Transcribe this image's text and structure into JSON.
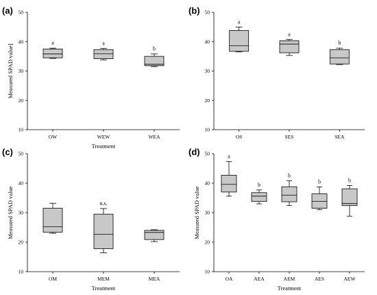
{
  "chart_data": [
    {
      "type": "box",
      "panel_label": "(a)",
      "xlabel": "Treatment",
      "ylabel": "Measured SPAD value]",
      "ylim": [
        10,
        50
      ],
      "yticks": [
        10,
        20,
        30,
        40,
        50
      ],
      "categories": [
        "OW",
        "WEW",
        "WEA"
      ],
      "boxes": [
        {
          "whisker_low": 34.3,
          "q1": 34.5,
          "median": 35.8,
          "q3": 37.5,
          "whisker_high": 37.8
        },
        {
          "whisker_low": 33.8,
          "q1": 34.2,
          "median": 35.9,
          "q3": 37.3,
          "whisker_high": 37.7
        },
        {
          "whisker_low": 31.5,
          "q1": 31.8,
          "median": 32.3,
          "q3": 35.0,
          "whisker_high": 35.8
        }
      ],
      "annotations": [
        "a",
        "a",
        "b"
      ]
    },
    {
      "type": "box",
      "panel_label": "(b)",
      "xlabel": "",
      "ylabel": "",
      "ylim": [
        10,
        50
      ],
      "yticks": [
        10,
        20,
        30,
        40,
        50
      ],
      "categories": [
        "OS",
        "SES",
        "SEA"
      ],
      "boxes": [
        {
          "whisker_low": 36.5,
          "q1": 36.7,
          "median": 38.6,
          "q3": 43.8,
          "whisker_high": 45.0
        },
        {
          "whisker_low": 35.3,
          "q1": 36.2,
          "median": 39.2,
          "q3": 40.3,
          "whisker_high": 40.8
        },
        {
          "whisker_low": 32.2,
          "q1": 32.4,
          "median": 34.5,
          "q3": 37.3,
          "whisker_high": 37.8
        }
      ],
      "annotations": [
        "a",
        "a",
        "b"
      ]
    },
    {
      "type": "box",
      "panel_label": "(c)",
      "xlabel": "Treatment",
      "ylabel": "Measured SPAD value",
      "ylim": [
        10,
        50
      ],
      "yticks": [
        10,
        20,
        30,
        40,
        50
      ],
      "categories": [
        "OM",
        "MEM",
        "MEA"
      ],
      "boxes": [
        {
          "whisker_low": 23.0,
          "q1": 23.4,
          "median": 25.2,
          "q3": 31.5,
          "whisker_high": 33.2
        },
        {
          "whisker_low": 16.4,
          "q1": 17.8,
          "median": 22.7,
          "q3": 29.5,
          "whisker_high": 31.4
        },
        {
          "whisker_low": 20.2,
          "q1": 20.9,
          "median": 23.3,
          "q3": 24.0,
          "whisker_high": 24.2
        }
      ],
      "annotations": [
        "",
        "n.s.",
        ""
      ]
    },
    {
      "type": "box",
      "panel_label": "(d)",
      "xlabel": "Treatment",
      "ylabel": "Measured SPAD value",
      "ylim": [
        10,
        50
      ],
      "yticks": [
        10,
        20,
        30,
        40,
        50
      ],
      "categories": [
        "OA",
        "AEA",
        "AEM",
        "AES",
        "AEW"
      ],
      "boxes": [
        {
          "whisker_low": 35.6,
          "q1": 37.0,
          "median": 39.6,
          "q3": 42.7,
          "whisker_high": 47.3
        },
        {
          "whisker_low": 33.0,
          "q1": 33.8,
          "median": 35.6,
          "q3": 36.8,
          "whisker_high": 37.7
        },
        {
          "whisker_low": 32.4,
          "q1": 33.7,
          "median": 35.9,
          "q3": 38.8,
          "whisker_high": 40.8
        },
        {
          "whisker_low": 31.0,
          "q1": 31.5,
          "median": 33.8,
          "q3": 36.4,
          "whisker_high": 38.7
        },
        {
          "whisker_low": 28.8,
          "q1": 32.4,
          "median": 33.1,
          "q3": 38.1,
          "whisker_high": 39.2
        }
      ],
      "annotations": [
        "a",
        "b",
        "b",
        "b",
        "b"
      ]
    }
  ]
}
